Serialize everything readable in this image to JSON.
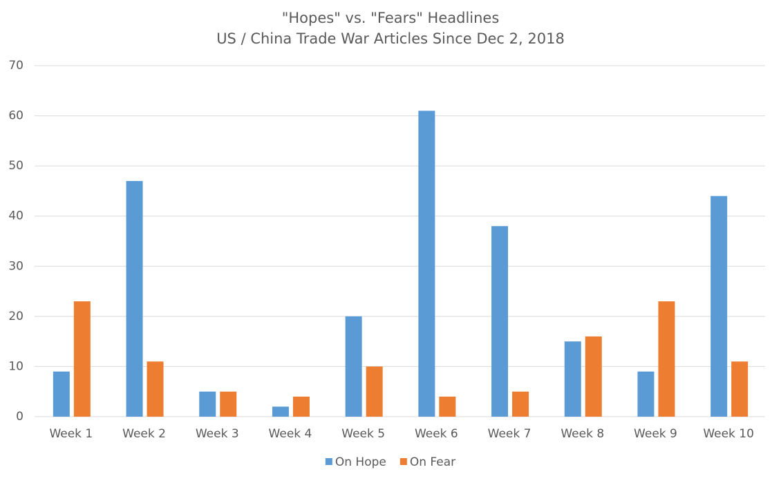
{
  "chart_data": {
    "type": "bar",
    "title": "\"Hopes\" vs. \"Fears\" Headlines",
    "subtitle": "US / China Trade War Articles Since Dec 2, 2018",
    "categories": [
      "Week 1",
      "Week 2",
      "Week 3",
      "Week 4",
      "Week 5",
      "Week 6",
      "Week 7",
      "Week 8",
      "Week 9",
      "Week 10"
    ],
    "series": [
      {
        "name": "On Hope",
        "color": "#5b9bd5",
        "values": [
          9,
          47,
          5,
          2,
          20,
          61,
          38,
          15,
          9,
          44
        ]
      },
      {
        "name": "On Fear",
        "color": "#ed7d31",
        "values": [
          23,
          11,
          5,
          4,
          10,
          4,
          5,
          16,
          23,
          11
        ]
      }
    ],
    "ylim": [
      0,
      70
    ],
    "yticks": [
      0,
      10,
      20,
      30,
      40,
      50,
      60,
      70
    ],
    "grid": true,
    "legend": "bottom"
  }
}
